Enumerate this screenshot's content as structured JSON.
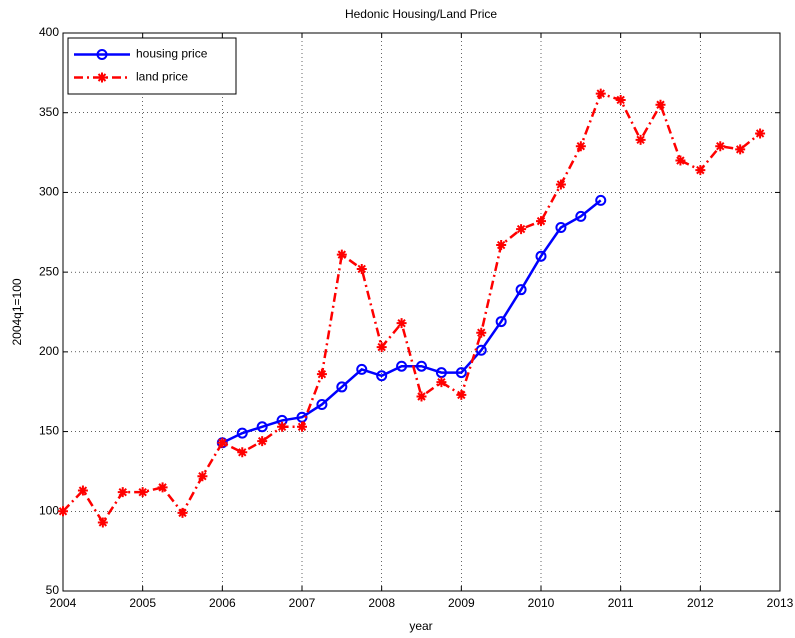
{
  "chart_data": {
    "type": "line",
    "title": "Hedonic Housing/Land Price",
    "x_label": "year",
    "y_label": "2004q1=100",
    "x": [
      2004,
      2004.25,
      2004.5,
      2004.75,
      2005,
      2005.25,
      2005.5,
      2005.75,
      2006,
      2006.25,
      2006.5,
      2006.75,
      2007,
      2007.25,
      2007.5,
      2007.75,
      2008,
      2008.25,
      2008.5,
      2008.75,
      2009,
      2009.25,
      2009.5,
      2009.75,
      2010,
      2010.25,
      2010.5,
      2010.75,
      2011,
      2011.25,
      2011.5,
      2011.75,
      2012,
      2012.25,
      2012.5,
      2012.75
    ],
    "series": [
      {
        "name": "housing price",
        "color": "#0000ff",
        "linestyle": "solid",
        "marker": "circle",
        "values": [
          null,
          null,
          null,
          null,
          null,
          null,
          null,
          null,
          143,
          149,
          153,
          157,
          159,
          167,
          178,
          189,
          185,
          191,
          191,
          187,
          187,
          201,
          219,
          239,
          260,
          278,
          285,
          295,
          null,
          null,
          null,
          null,
          null,
          null,
          null,
          null
        ]
      },
      {
        "name": "land price",
        "color": "#ff0000",
        "linestyle": "dashdot",
        "marker": "asterisk",
        "values": [
          100,
          113,
          93,
          112,
          112,
          115,
          99,
          122,
          143,
          137,
          144,
          153,
          153,
          186,
          261,
          252,
          203,
          218,
          172,
          181,
          173,
          212,
          267,
          277,
          282,
          305,
          329,
          362,
          358,
          333,
          355,
          320,
          314,
          329,
          327,
          337
        ]
      }
    ],
    "xlim": [
      2004,
      2013
    ],
    "xticks": [
      2004,
      2005,
      2006,
      2007,
      2008,
      2009,
      2010,
      2011,
      2012,
      2013
    ],
    "ylim": [
      50,
      400
    ],
    "yticks": [
      50,
      100,
      150,
      200,
      250,
      300,
      350,
      400
    ],
    "grid": true,
    "legend": "upper left"
  }
}
